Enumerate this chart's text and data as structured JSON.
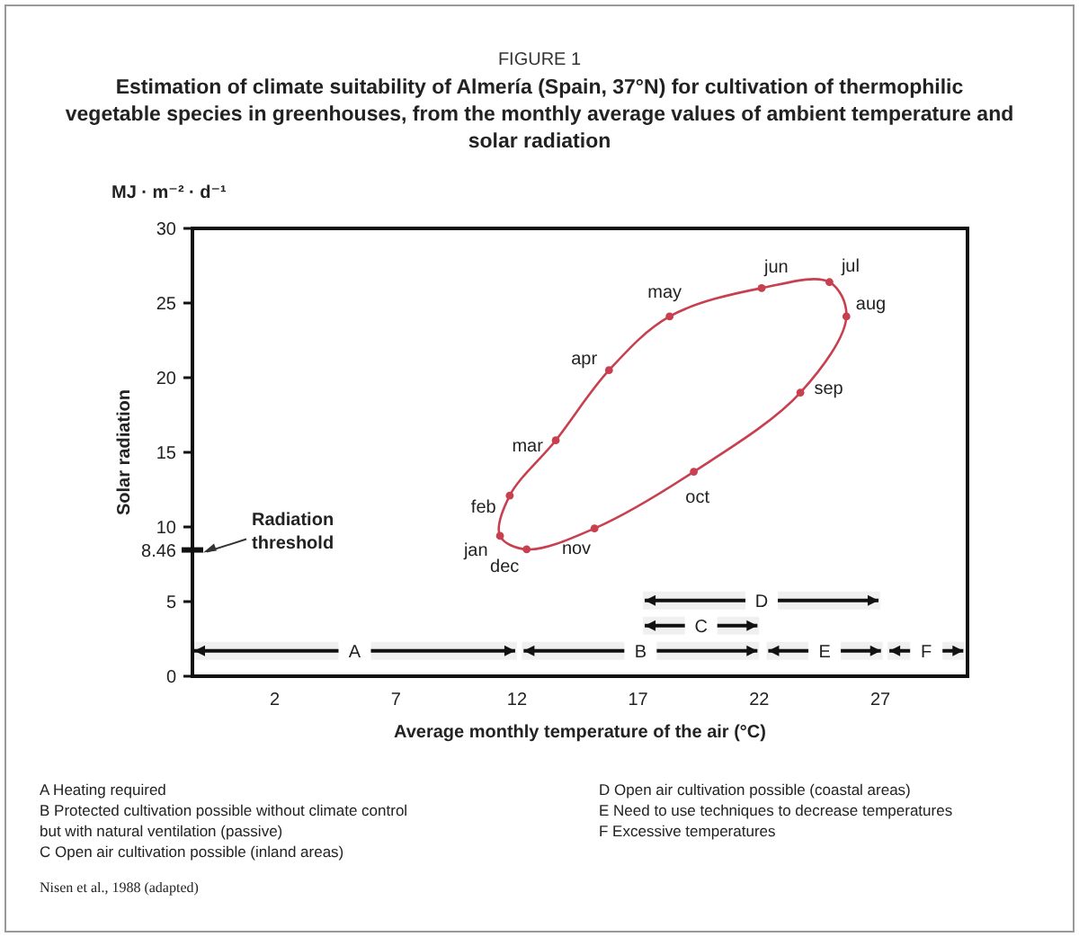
{
  "chart_data": {
    "type": "scatter",
    "title": "FIGURE 1",
    "subtitle": "Estimation of climate suitability of Almería (Spain, 37°N) for cultivation of thermophilic vegetable species in greenhouses, from the monthly average values of ambient temperature and solar radiation",
    "xlabel": "Average monthly temperature of the air (°C)",
    "ylabel": "Solar radiation",
    "series": [
      {
        "color": "#c8404f",
        "x": [
          11.3,
          11.7,
          13.6,
          15.8,
          18.3,
          22.1,
          24.9,
          25.6,
          23.7,
          19.3,
          15.2,
          12.4
        ],
        "values": [
          9.4,
          12.1,
          15.8,
          20.5,
          24.1,
          26.0,
          26.4,
          24.1,
          19.0,
          13.7,
          9.9,
          8.5
        ]
      }
    ],
    "marker": "circle",
    "line_style": "solid",
    "xlim": [
      -1.4,
      30.6
    ],
    "xticks": [
      2,
      7,
      12,
      17,
      22,
      27
    ],
    "ylim": [
      0,
      30
    ],
    "yticks": [
      0,
      5,
      8.46,
      10,
      15,
      20,
      25,
      30
    ],
    "grid": false,
    "bands": [
      {
        "axis": "x",
        "from": -1.4,
        "to": 12.0,
        "label": "A"
      },
      {
        "axis": "x",
        "from": 12.2,
        "to": 22.0,
        "label": "B"
      },
      {
        "axis": "x",
        "from": 22.3,
        "to": 27.1,
        "label": "E"
      },
      {
        "axis": "x",
        "from": 27.3,
        "to": 30.5,
        "label": "F"
      },
      {
        "axis": "x",
        "from": 17.2,
        "to": 22.0,
        "label": "C"
      },
      {
        "axis": "x",
        "from": 17.2,
        "to": 27.0,
        "label": "D"
      }
    ],
    "annotations": [
      "MJ · m⁻² · d⁻¹",
      "Radiation threshold",
      {
        "text": "jan",
        "x": 11.3,
        "y": 9.4
      },
      {
        "text": "feb",
        "x": 11.7,
        "y": 12.1
      },
      {
        "text": "mar",
        "x": 13.6,
        "y": 15.8
      },
      {
        "text": "apr",
        "x": 15.8,
        "y": 20.5
      },
      {
        "text": "may",
        "x": 18.3,
        "y": 24.1
      },
      {
        "text": "jun",
        "x": 22.1,
        "y": 26.0
      },
      {
        "text": "jul",
        "x": 24.9,
        "y": 26.4
      },
      {
        "text": "aug",
        "x": 25.6,
        "y": 24.1
      },
      {
        "text": "sep",
        "x": 23.7,
        "y": 19.0
      },
      {
        "text": "oct",
        "x": 19.3,
        "y": 13.7
      },
      {
        "text": "nov",
        "x": 15.2,
        "y": 9.9
      },
      {
        "text": "dec",
        "x": 12.4,
        "y": 8.5
      },
      "A Heating required",
      "B Protected cultivation possible without climate control but with natural ventilation (passive)",
      "C Open air cultivation possible (inland areas)",
      "D Open air cultivation possible (coastal areas)",
      "E Need to use techniques to decrease temperatures",
      "F Excessive temperatures",
      "Nisen et al., 1988 (adapted)"
    ]
  }
}
